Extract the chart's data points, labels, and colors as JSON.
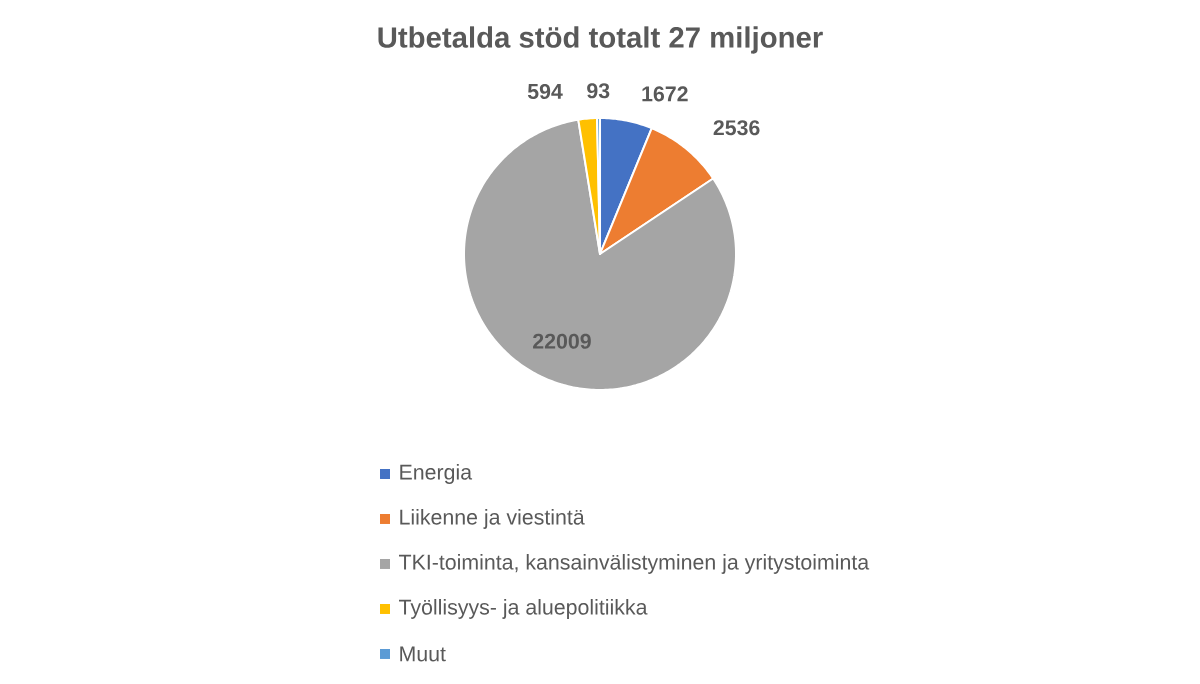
{
  "chart_data": {
    "type": "pie",
    "title": "Utbetalda stöd totalt 27 miljoner",
    "categories": [
      "Energia",
      "Liikenne ja viestintä",
      "TKI-toiminta, kansainvälistyminen ja yritystoiminta",
      "Työllisyys- ja aluepolitiikka",
      "Muut"
    ],
    "values": [
      1672,
      2536,
      22009,
      594,
      93
    ],
    "colors": [
      "#4472c4",
      "#ed7d31",
      "#a5a5a5",
      "#ffc000",
      "#5b9bd5"
    ],
    "data_labels": true,
    "legend": "bottom"
  }
}
